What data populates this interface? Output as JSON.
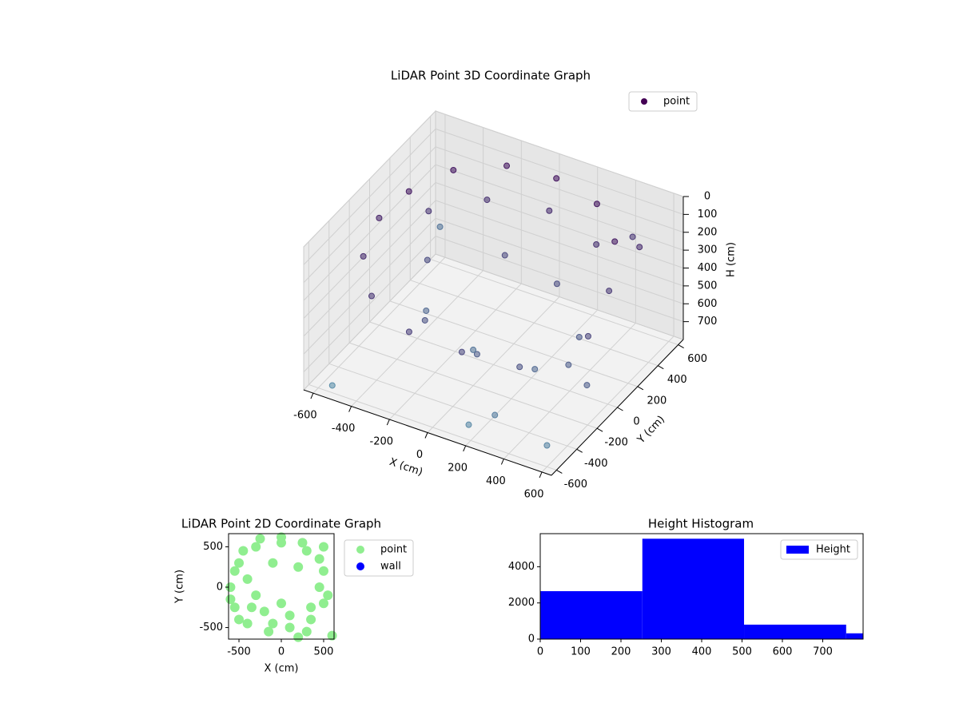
{
  "chart_data": [
    {
      "type": "scatter3d",
      "title": "LiDAR Point 3D Coordinate Graph",
      "xlabel": "X (cm)",
      "ylabel": "Y (cm)",
      "zlabel": "H (cm)",
      "xlim": [
        -650,
        650
      ],
      "ylim": [
        -650,
        650
      ],
      "zlim": [
        800,
        0
      ],
      "xticks": [
        -600,
        -400,
        -200,
        0,
        200,
        400,
        600
      ],
      "yticks": [
        -600,
        -400,
        -200,
        0,
        200,
        400,
        600
      ],
      "zticks": [
        0,
        100,
        200,
        300,
        400,
        500,
        600,
        700
      ],
      "grid": true,
      "legend": "upper right",
      "series": [
        {
          "name": "point",
          "color": "#440154",
          "color_range": [
            "#440154",
            "#5f9fb3"
          ],
          "x": [
            -550,
            -450,
            -250,
            0,
            250,
            450,
            -600,
            -550,
            -400,
            -150,
            100,
            350,
            500,
            -500,
            -300,
            0,
            300,
            500,
            550,
            -200,
            100,
            350,
            -400,
            -100,
            200,
            450,
            -300,
            0,
            300,
            600,
            -600,
            200,
            500,
            -500,
            650,
            400
          ],
          "y": [
            200,
            450,
            600,
            620,
            550,
            350,
            0,
            -250,
            -450,
            -550,
            -500,
            -400,
            -200,
            300,
            500,
            550,
            450,
            200,
            -100,
            -300,
            -350,
            -250,
            100,
            300,
            250,
            0,
            -100,
            -200,
            -550,
            -600,
            600,
            -620,
            500,
            -650,
            -300,
            620
          ],
          "z": [
            150,
            140,
            130,
            120,
            130,
            150,
            200,
            250,
            300,
            350,
            400,
            450,
            500,
            300,
            280,
            260,
            280,
            320,
            380,
            450,
            500,
            550,
            420,
            400,
            420,
            480,
            550,
            600,
            650,
            680,
            600,
            700,
            250,
            720,
            500,
            300
          ]
        }
      ]
    },
    {
      "type": "scatter",
      "title": "LiDAR Point 2D Coordinate Graph",
      "xlabel": "X (cm)",
      "ylabel": "Y (cm)",
      "xlim": [
        -623,
        623
      ],
      "ylim": [
        -643,
        663
      ],
      "xticks": [
        -500,
        0,
        500
      ],
      "yticks": [
        -500,
        0,
        500
      ],
      "legend": "outside right",
      "series": [
        {
          "name": "point",
          "color": "#90ee90",
          "x": [
            -550,
            -450,
            -250,
            0,
            250,
            450,
            -600,
            -550,
            -400,
            -150,
            100,
            350,
            500,
            -500,
            -300,
            0,
            300,
            500,
            550,
            -200,
            100,
            350,
            -400,
            -100,
            200,
            450,
            -300,
            0,
            300,
            600,
            -600,
            200,
            500,
            -500,
            -350,
            -100
          ],
          "y": [
            200,
            450,
            600,
            620,
            550,
            350,
            0,
            -250,
            -450,
            -550,
            -500,
            -400,
            -200,
            300,
            500,
            550,
            450,
            200,
            -100,
            -300,
            -350,
            -250,
            100,
            300,
            250,
            0,
            -100,
            -200,
            -550,
            -600,
            -150,
            -620,
            500,
            -400,
            -250,
            -450
          ]
        },
        {
          "name": "wall",
          "color": "#0000ff",
          "x": [],
          "y": []
        }
      ]
    },
    {
      "type": "histogram",
      "title": "Height Histogram",
      "xlim": [
        0,
        800
      ],
      "ylim": [
        0,
        5830
      ],
      "xticks": [
        0,
        100,
        200,
        300,
        400,
        500,
        600,
        700
      ],
      "yticks": [
        0,
        2000,
        4000
      ],
      "legend": "upper right",
      "bins": [
        0,
        253,
        505,
        758,
        800
      ],
      "series": [
        {
          "name": "Height",
          "color": "#0000ff",
          "values": [
            2650,
            5550,
            800,
            320
          ]
        }
      ]
    }
  ]
}
